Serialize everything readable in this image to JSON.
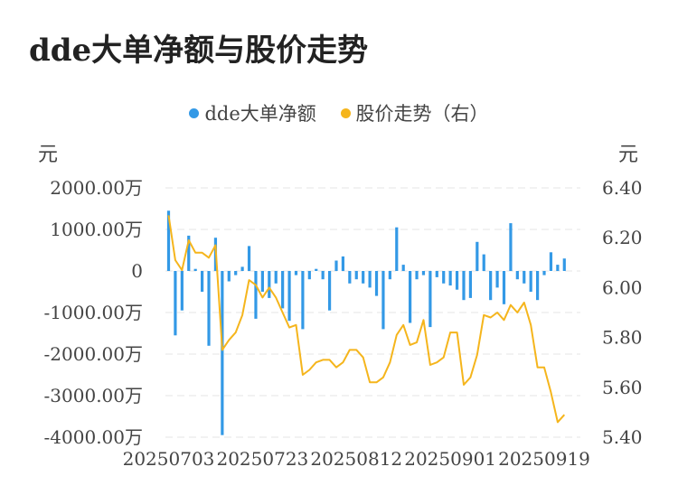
{
  "title": "dde大单净额与股价走势",
  "colors": {
    "bar": "#3399e6",
    "line": "#f5b51c",
    "grid": "#e6e6e6"
  },
  "legend": [
    {
      "label": "dde大单净额",
      "color": "#3399e6",
      "icon": "circle"
    },
    {
      "label": "股价走势（右）",
      "color": "#f5b51c",
      "icon": "circle"
    }
  ],
  "chart_data": {
    "type": "bar",
    "title": "dde大单净额与股价走势",
    "left_axis": {
      "unit": "元",
      "range": [
        -4000,
        2000
      ],
      "ticks": [
        2000,
        1000,
        0,
        -1000,
        -2000,
        -3000,
        -4000
      ],
      "tick_labels": [
        "2000.00万",
        "1000.00万",
        "0",
        "-1000.00万",
        "-2000.00万",
        "-3000.00万",
        "-4000.00万"
      ]
    },
    "right_axis": {
      "unit": "元",
      "range": [
        5.4,
        6.4
      ],
      "ticks": [
        6.4,
        6.2,
        6.0,
        5.8,
        5.6,
        5.4
      ],
      "tick_labels": [
        "6.40",
        "6.20",
        "6.00",
        "5.80",
        "5.60",
        "5.40"
      ]
    },
    "x_tick_labels": [
      "20250703",
      "20250723",
      "20250812",
      "20250901",
      "20250919"
    ],
    "x_tick_positions": [
      0,
      14,
      28,
      42,
      56
    ],
    "grid": true,
    "legend_position": "top-center",
    "series": [
      {
        "name": "dde大单净额",
        "type": "bar",
        "axis": "left",
        "unit": "万元",
        "values": [
          1450,
          -1550,
          -950,
          850,
          50,
          -500,
          -1800,
          800,
          -3950,
          -250,
          -100,
          100,
          600,
          -1150,
          -500,
          -650,
          -300,
          -900,
          -1200,
          -100,
          -1400,
          -200,
          50,
          -200,
          -950,
          250,
          350,
          -300,
          -200,
          -300,
          -400,
          -600,
          -1400,
          -200,
          1050,
          150,
          -1250,
          -200,
          -100,
          -1350,
          -150,
          -300,
          -350,
          -450,
          -700,
          -650,
          700,
          400,
          -700,
          -400,
          -800,
          1150,
          -200,
          -300,
          -500,
          -700,
          -100,
          450,
          150,
          300
        ]
      },
      {
        "name": "股价走势（右）",
        "type": "line",
        "axis": "right",
        "unit": "元",
        "values": [
          6.29,
          6.11,
          6.07,
          6.19,
          6.14,
          6.14,
          6.12,
          6.17,
          5.75,
          5.79,
          5.82,
          5.89,
          6.03,
          6.01,
          5.96,
          6.0,
          5.96,
          5.9,
          5.84,
          5.85,
          5.65,
          5.67,
          5.7,
          5.71,
          5.71,
          5.68,
          5.7,
          5.75,
          5.75,
          5.72,
          5.62,
          5.62,
          5.64,
          5.7,
          5.81,
          5.85,
          5.77,
          5.78,
          5.87,
          5.69,
          5.7,
          5.72,
          5.82,
          5.82,
          5.61,
          5.64,
          5.73,
          5.89,
          5.88,
          5.9,
          5.87,
          5.93,
          5.9,
          5.94,
          5.85,
          5.68,
          5.68,
          5.58,
          5.46,
          5.49
        ]
      }
    ]
  }
}
